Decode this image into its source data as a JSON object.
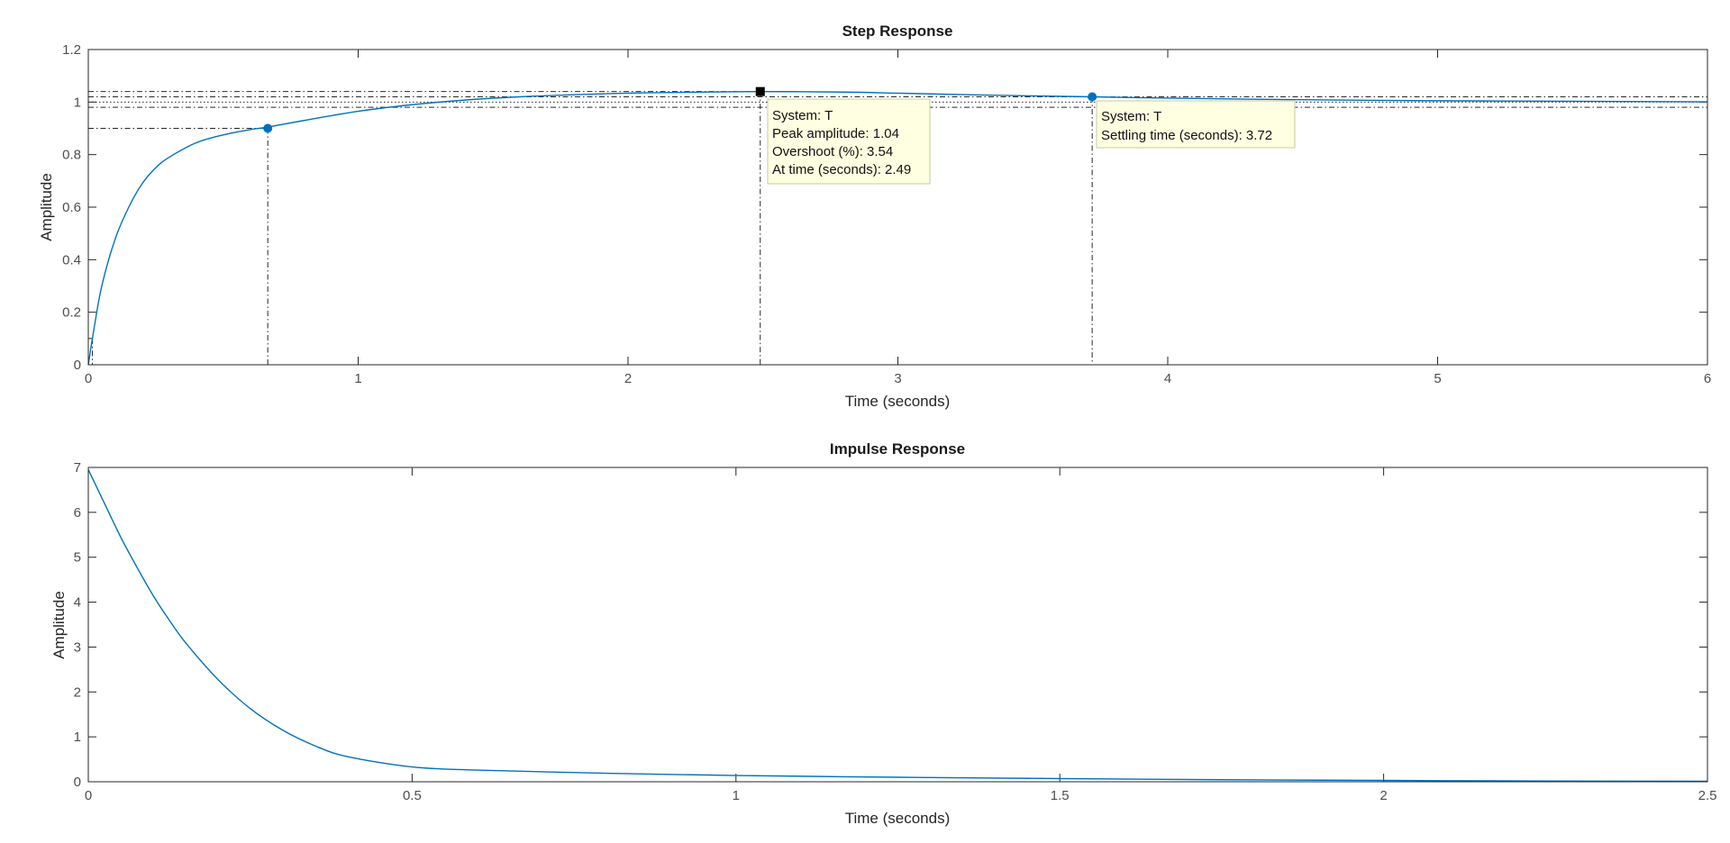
{
  "chart_data": [
    {
      "type": "line",
      "title": "Step Response",
      "xlabel": "Time (seconds)",
      "ylabel": "Amplitude",
      "xlim": [
        0,
        6
      ],
      "ylim": [
        0,
        1.2
      ],
      "xticks": [
        "0",
        "1",
        "2",
        "3",
        "4",
        "5",
        "6"
      ],
      "yticks": [
        "0",
        "0.2",
        "0.4",
        "0.6",
        "0.8",
        "1",
        "1.2"
      ],
      "grid": false,
      "series_color": "#0072BD",
      "series": [
        {
          "x": [
            0,
            0.02,
            0.05,
            0.1,
            0.15,
            0.2,
            0.25,
            0.3,
            0.4,
            0.5,
            0.6,
            0.665,
            0.8,
            1.0,
            1.2,
            1.4,
            1.6,
            1.8,
            2.0,
            2.2,
            2.49,
            2.8,
            3.0,
            3.3,
            3.72,
            4.0,
            4.5,
            5.0,
            5.5,
            6.0
          ],
          "y": [
            0,
            0.13,
            0.3,
            0.48,
            0.6,
            0.69,
            0.75,
            0.79,
            0.845,
            0.875,
            0.895,
            0.905,
            0.93,
            0.965,
            0.99,
            1.008,
            1.02,
            1.028,
            1.034,
            1.037,
            1.04,
            1.038,
            1.034,
            1.027,
            1.02,
            1.015,
            1.009,
            1.005,
            1.003,
            1.001
          ]
        }
      ],
      "characteristics": {
        "rise_time_start": {
          "x": 0.015,
          "y": 0.1
        },
        "rise_time_end": {
          "x": 0.665,
          "y": 0.9
        },
        "peak": {
          "x": 2.49,
          "y": 1.04
        },
        "settling": {
          "x": 3.72,
          "y": 1.02
        },
        "steady_state": 1.0,
        "settling_band": [
          0.98,
          1.02
        ]
      },
      "datatips": [
        {
          "lines": [
            "System: T",
            "Peak amplitude: 1.04",
            "Overshoot (%): 3.54",
            "At time (seconds): 2.49"
          ]
        },
        {
          "lines": [
            "System: T",
            "Settling time (seconds): 3.72"
          ]
        }
      ]
    },
    {
      "type": "line",
      "title": "Impulse Response",
      "xlabel": "Time (seconds)",
      "ylabel": "Amplitude",
      "xlim": [
        0,
        2.5
      ],
      "ylim": [
        0,
        7
      ],
      "xticks": [
        "0",
        "0.5",
        "1",
        "1.5",
        "2",
        "2.5"
      ],
      "yticks": [
        "0",
        "1",
        "2",
        "3",
        "4",
        "5",
        "6",
        "7"
      ],
      "grid": false,
      "series_color": "#0072BD",
      "series": [
        {
          "x": [
            0,
            0.025,
            0.05,
            0.075,
            0.1,
            0.125,
            0.15,
            0.2,
            0.25,
            0.3,
            0.35,
            0.4,
            0.5,
            0.6,
            0.8,
            1.0,
            1.25,
            1.5,
            1.75,
            2.0,
            2.25,
            2.5
          ],
          "y": [
            6.95,
            6.2,
            5.45,
            4.78,
            4.15,
            3.6,
            3.1,
            2.28,
            1.63,
            1.15,
            0.8,
            0.56,
            0.33,
            0.26,
            0.19,
            0.14,
            0.1,
            0.07,
            0.045,
            0.03,
            0.015,
            0.01
          ]
        }
      ]
    }
  ]
}
